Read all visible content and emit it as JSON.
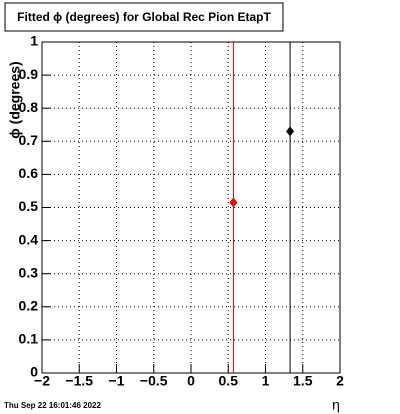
{
  "chart_data": {
    "type": "scatter",
    "title": "Fitted ϕ (degrees) for Global Rec Pion EtapT",
    "x_label": "η",
    "y_label": "ϕ (degrees)",
    "footer": "Thu Sep 22 16:01:46 2022",
    "series": [
      {
        "color": "#ff0000",
        "x": [
          0.57
        ],
        "values": [
          0.515
        ]
      },
      {
        "color": "#000000",
        "x": [
          1.33
        ],
        "values": [
          0.73
        ]
      }
    ],
    "xlim": [
      -2,
      2
    ],
    "xticks": [
      {
        "value": -2,
        "label": "−2"
      },
      {
        "value": -1.5,
        "label": "−1.5"
      },
      {
        "value": -1,
        "label": "−1"
      },
      {
        "value": -0.5,
        "label": "−0.5"
      },
      0,
      0.5,
      1,
      1.5,
      2
    ],
    "ylim": [
      0,
      1
    ],
    "yticks": [
      0,
      0.1,
      0.2,
      0.3,
      0.4,
      0.5,
      0.6,
      0.7,
      0.8,
      0.9,
      1
    ],
    "grid": true
  }
}
